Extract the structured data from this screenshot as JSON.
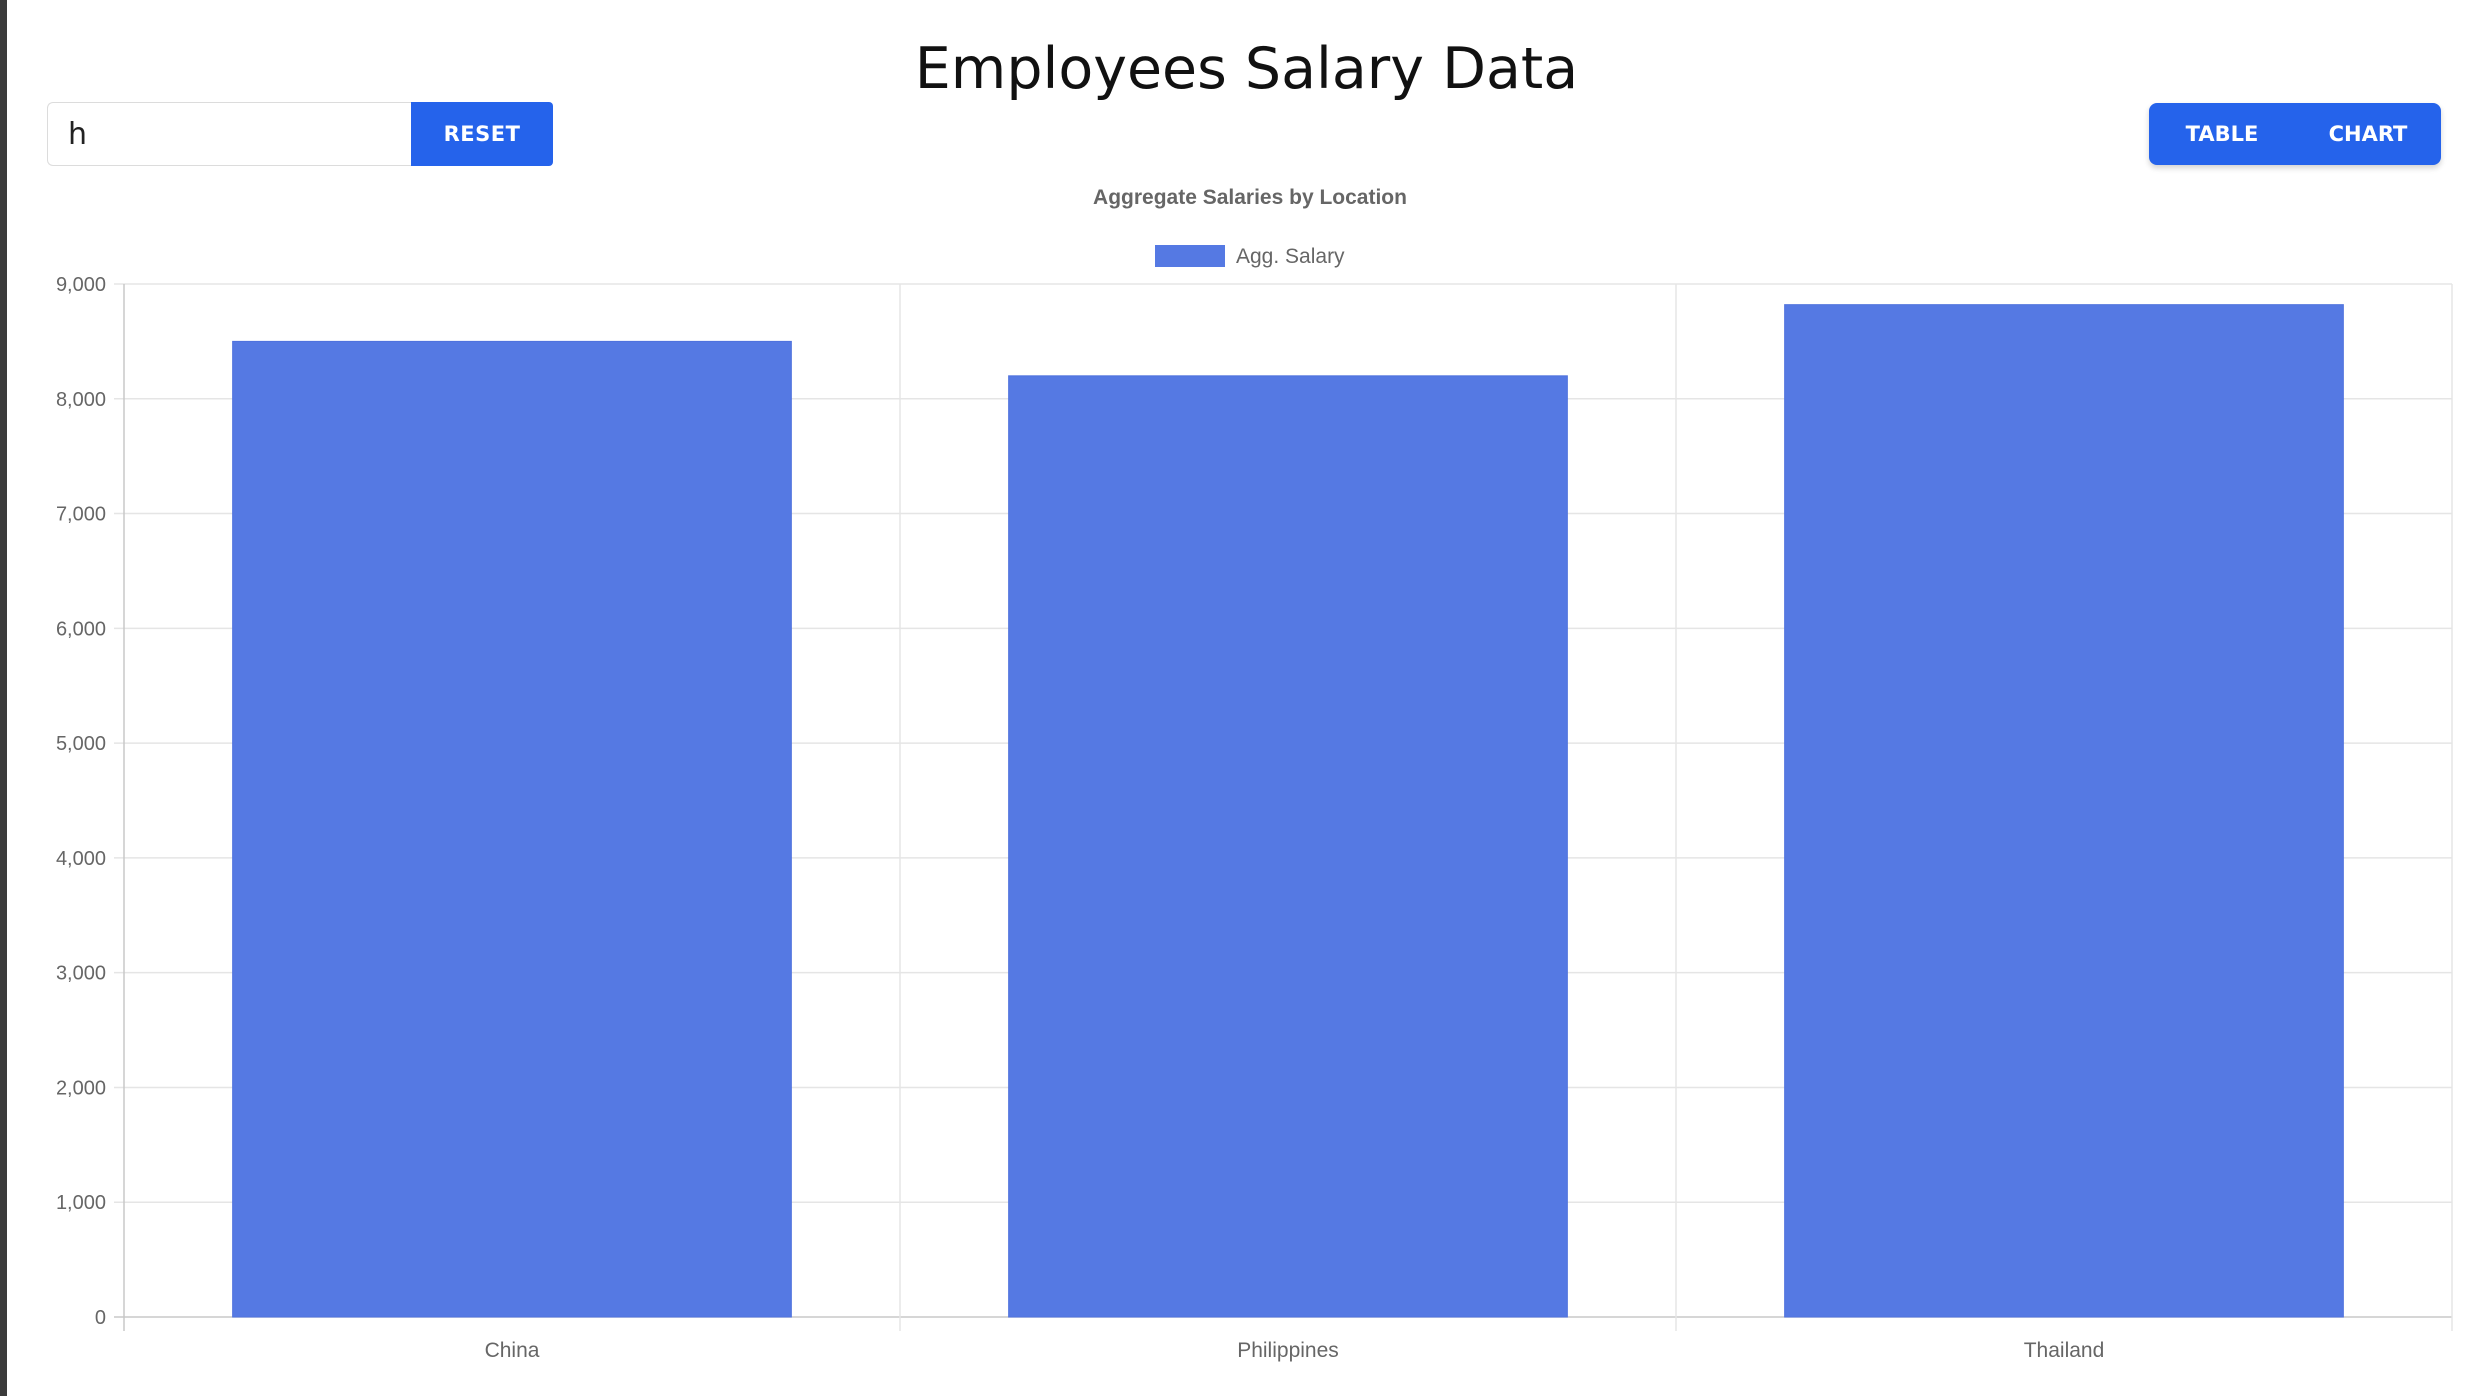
{
  "page": {
    "title": "Employees Salary Data"
  },
  "filter": {
    "value": "h",
    "reset_label": "RESET"
  },
  "view_toggle": {
    "table_label": "TABLE",
    "chart_label": "CHART"
  },
  "colors": {
    "accent": "#2563eb",
    "bar": "#5579e3",
    "grid": "#e5e5e5",
    "axis_text": "#666666"
  },
  "chart_data": {
    "type": "bar",
    "title": "Aggregate Salaries by Location",
    "categories": [
      "China",
      "Philippines",
      "Thailand"
    ],
    "series": [
      {
        "name": "Agg. Salary",
        "values": [
          8500,
          8200,
          8820
        ]
      }
    ],
    "ylim": [
      0,
      9000
    ],
    "yticks": [
      "0",
      "1,000",
      "2,000",
      "3,000",
      "4,000",
      "5,000",
      "6,000",
      "7,000",
      "8,000",
      "9,000"
    ],
    "legend_position": "top-center",
    "grid": true
  }
}
